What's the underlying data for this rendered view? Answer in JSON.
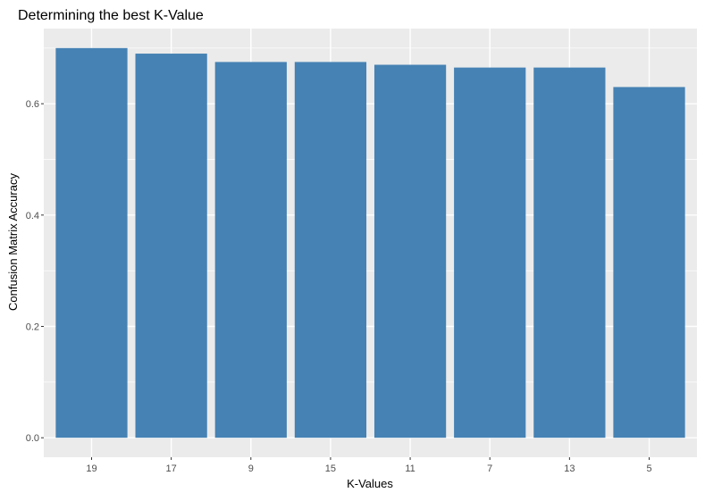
{
  "chart_data": {
    "type": "bar",
    "title": "Determining the best K-Value",
    "xlabel": "K-Values",
    "ylabel": "Confusion Matrix Accuracy",
    "categories": [
      "19",
      "17",
      "9",
      "15",
      "11",
      "7",
      "13",
      "5"
    ],
    "values": [
      0.7,
      0.69,
      0.675,
      0.675,
      0.67,
      0.665,
      0.665,
      0.63
    ],
    "ylim": [
      -0.035,
      0.735
    ],
    "yticks": [
      0.0,
      0.2,
      0.4,
      0.6
    ],
    "ytick_labels": [
      "0.0",
      "0.2",
      "0.4",
      "0.6"
    ],
    "grid": true,
    "legend": "none",
    "colors": {
      "bar": "#4682b4",
      "panel": "#ebebeb",
      "grid": "#ffffff",
      "tick": "#333333"
    }
  }
}
